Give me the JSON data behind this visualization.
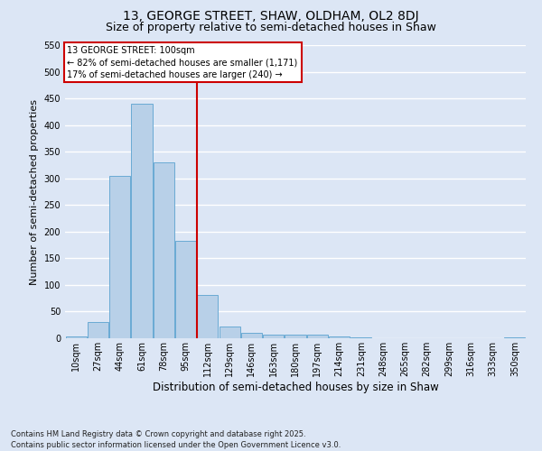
{
  "title_line1": "13, GEORGE STREET, SHAW, OLDHAM, OL2 8DJ",
  "title_line2": "Size of property relative to semi-detached houses in Shaw",
  "xlabel": "Distribution of semi-detached houses by size in Shaw",
  "ylabel": "Number of semi-detached properties",
  "categories": [
    "10sqm",
    "27sqm",
    "44sqm",
    "61sqm",
    "78sqm",
    "95sqm",
    "112sqm",
    "129sqm",
    "146sqm",
    "163sqm",
    "180sqm",
    "197sqm",
    "214sqm",
    "231sqm",
    "248sqm",
    "265sqm",
    "282sqm",
    "299sqm",
    "316sqm",
    "333sqm",
    "350sqm"
  ],
  "values": [
    4,
    30,
    305,
    440,
    330,
    183,
    82,
    22,
    11,
    6,
    7,
    7,
    4,
    1,
    0,
    0,
    0,
    0,
    0,
    0,
    1
  ],
  "bar_color": "#b8d0e8",
  "bar_edge_color": "#6aaad4",
  "vline_color": "#cc0000",
  "vline_pos": 5.5,
  "ylim": [
    0,
    550
  ],
  "yticks": [
    0,
    50,
    100,
    150,
    200,
    250,
    300,
    350,
    400,
    450,
    500,
    550
  ],
  "annotation_title": "13 GEORGE STREET: 100sqm",
  "annotation_line1": "← 82% of semi-detached houses are smaller (1,171)",
  "annotation_line2": "17% of semi-detached houses are larger (240) →",
  "annotation_box_color": "#cc0000",
  "footer_line1": "Contains HM Land Registry data © Crown copyright and database right 2025.",
  "footer_line2": "Contains public sector information licensed under the Open Government Licence v3.0.",
  "bg_color": "#dce6f5",
  "plot_bg_color": "#dce6f5",
  "grid_color": "#ffffff",
  "title1_fontsize": 10,
  "title2_fontsize": 9,
  "ylabel_fontsize": 8,
  "xlabel_fontsize": 8.5,
  "tick_fontsize": 7,
  "annot_fontsize": 7,
  "footer_fontsize": 6
}
